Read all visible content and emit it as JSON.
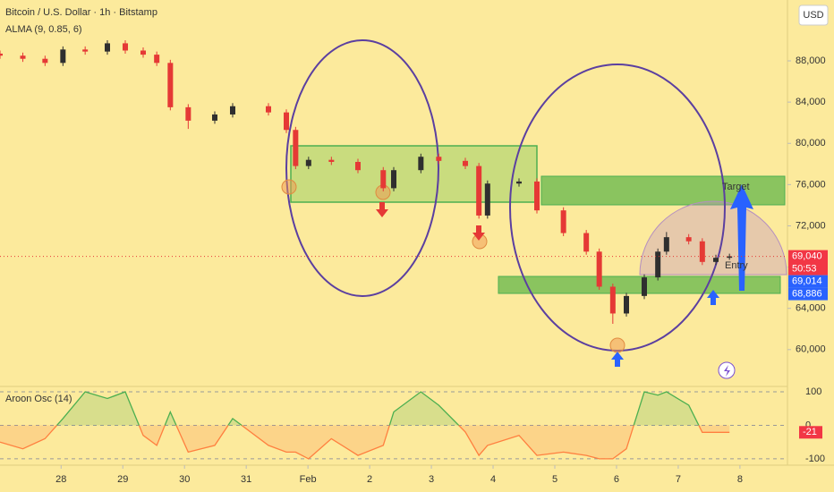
{
  "chart_data": {
    "type": "candlestick",
    "title": "Bitcoin / U.S. Dollar · 1h · Bitstamp",
    "subtitle": "ALMA (9, 0.85, 6)",
    "currency": "USD",
    "up_color": "#2f2f2f",
    "down_color": "#e53935",
    "x": [
      27.01,
      27.38,
      27.74,
      28.03,
      28.39,
      28.75,
      29.04,
      29.33,
      29.55,
      29.77,
      30.06,
      30.49,
      30.78,
      31.36,
      31.65,
      31.8,
      32.01,
      32.38,
      32.81,
      33.22,
      33.39,
      33.83,
      34.12,
      34.55,
      34.77,
      34.91,
      35.42,
      35.71,
      36.14,
      36.51,
      36.72,
      36.94,
      37.16,
      37.45,
      37.67,
      37.81,
      38.17,
      38.39,
      38.61,
      38.83
    ],
    "open": [
      88700,
      88500,
      88200,
      87800,
      89100,
      88900,
      89700,
      89000,
      88600,
      87800,
      83500,
      82200,
      82800,
      83600,
      83000,
      81300,
      77800,
      78400,
      78200,
      77400,
      75650,
      77400,
      78700,
      78300,
      77800,
      73000,
      76100,
      76300,
      73500,
      71300,
      69500,
      66100,
      63500,
      65200,
      67000,
      69500,
      70900,
      70500,
      68500,
      68900
    ],
    "high": [
      89000,
      88800,
      88500,
      89400,
      89400,
      90000,
      90000,
      89300,
      88900,
      88100,
      83800,
      83100,
      83900,
      83900,
      83300,
      81600,
      78700,
      78700,
      78500,
      77700,
      77700,
      79000,
      79000,
      78600,
      78100,
      76400,
      76600,
      76600,
      73800,
      71600,
      69800,
      66400,
      65500,
      67300,
      69800,
      71400,
      71200,
      70800,
      69200,
      69300
    ],
    "low": [
      88200,
      87900,
      87500,
      87500,
      88600,
      88600,
      88700,
      88300,
      87500,
      83200,
      81400,
      81900,
      82500,
      82700,
      81000,
      77500,
      77500,
      77900,
      77100,
      75350,
      75350,
      77100,
      78000,
      77500,
      72700,
      72700,
      75800,
      73200,
      71000,
      69200,
      65800,
      62500,
      63200,
      64900,
      66700,
      69200,
      70200,
      68200,
      68200,
      68700
    ],
    "close": [
      88500,
      88200,
      87800,
      89100,
      88900,
      89700,
      89000,
      88600,
      87800,
      83500,
      82200,
      82800,
      83600,
      83000,
      81300,
      77800,
      78400,
      78200,
      77400,
      75650,
      77400,
      78700,
      78300,
      77800,
      73000,
      76100,
      76300,
      73500,
      71300,
      69500,
      66100,
      63500,
      65200,
      67000,
      69500,
      70900,
      70500,
      68500,
      68900,
      69040
    ],
    "xlim": [
      27.01,
      39.77
    ],
    "xticks": [
      28,
      29,
      30,
      31,
      {
        "value": 32,
        "label": "Feb"
      },
      {
        "value": 33,
        "label": "2"
      },
      {
        "value": 34,
        "label": "3"
      },
      {
        "value": 35,
        "label": "4"
      },
      {
        "value": 36,
        "label": "5"
      },
      {
        "value": 37,
        "label": "6"
      },
      {
        "value": 38,
        "label": "7"
      },
      {
        "value": 39,
        "label": "8"
      }
    ],
    "ylim": [
      56600,
      93900
    ],
    "yticks": [
      {
        "value": 60000,
        "label": "60,000"
      },
      {
        "value": 64000,
        "label": "64,000"
      },
      {
        "value": 68000,
        "label": "68,000"
      },
      {
        "value": 72000,
        "label": "72,000"
      },
      {
        "value": 76000,
        "label": "76,000"
      },
      {
        "value": 80000,
        "label": "80,000"
      },
      {
        "value": 84000,
        "label": "84,000"
      },
      {
        "value": 88000,
        "label": "88,000"
      }
    ],
    "price_tags": [
      {
        "value": 69040,
        "label": "69,040",
        "color": "#f23645"
      },
      {
        "value": 69014,
        "label": "69,014",
        "color": "#2962ff"
      },
      {
        "value": 68886,
        "label": "68,886",
        "color": "#2962ff"
      }
    ],
    "countdown": "50:53",
    "annotations": [
      "Target",
      "Entry"
    ],
    "oscillator": {
      "name": "Aroon Osc (14)",
      "values": [
        -50,
        -70,
        -40,
        20,
        100,
        80,
        100,
        -30,
        -60,
        40,
        -80,
        -60,
        20,
        -60,
        -80,
        -80,
        -100,
        -40,
        -90,
        -60,
        40,
        100,
        60,
        -20,
        -90,
        -60,
        -30,
        -90,
        -80,
        -90,
        -100,
        -100,
        -70,
        100,
        90,
        100,
        60,
        -21,
        -21,
        -21
      ],
      "ylim": [
        -119,
        116
      ],
      "yticks": [
        100,
        0,
        -100
      ],
      "last": -21,
      "up_color": "#4caf50",
      "down_color": "#ff7f3f"
    }
  }
}
